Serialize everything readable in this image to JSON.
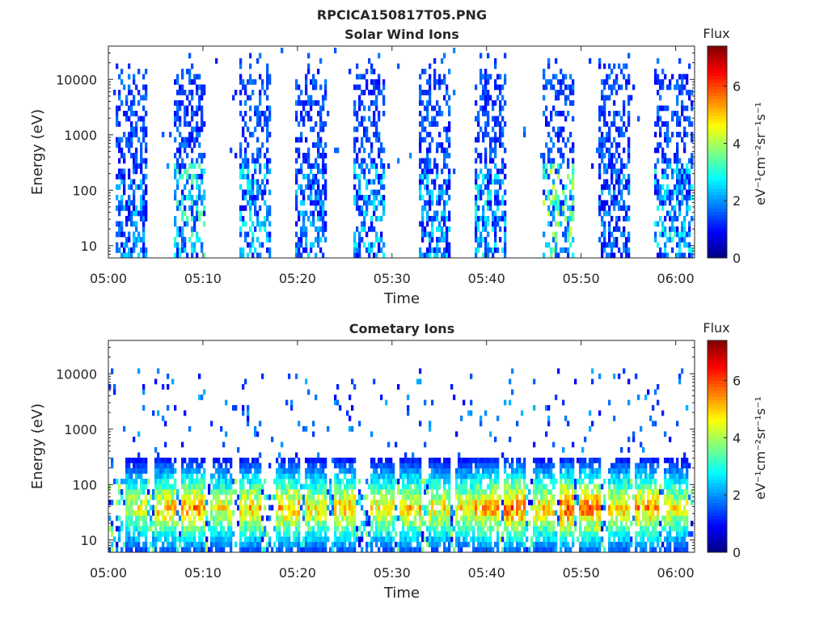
{
  "figure": {
    "title": "RPCICA150817T05.PNG"
  },
  "colors": {
    "axis": "#262626",
    "colormap": "jet",
    "background": "#ffffff"
  },
  "chart_data": [
    {
      "type": "heatmap",
      "title": "Solar Wind Ions",
      "xlabel": "Time",
      "ylabel": "Energy (eV)",
      "y_scale": "log",
      "ylim": [
        6,
        40000
      ],
      "xlim": [
        "05:00",
        "06:02"
      ],
      "x_ticks": [
        "05:00",
        "05:10",
        "05:20",
        "05:30",
        "05:40",
        "05:50",
        "06:00"
      ],
      "y_ticks": [
        "10",
        "100",
        "1000",
        "10000"
      ],
      "colorbar": {
        "title": "Flux",
        "label": "eV⁻¹cm⁻²sr⁻¹s⁻¹",
        "range": [
          0,
          7.4
        ],
        "ticks": [
          "0",
          "2",
          "4",
          "6"
        ]
      },
      "bursts": [
        {
          "start": "05:01",
          "end": "05:04",
          "peak": 2.6
        },
        {
          "start": "05:07",
          "end": "05:10",
          "peak": 3.6
        },
        {
          "start": "05:14",
          "end": "05:17",
          "peak": 3.0
        },
        {
          "start": "05:20",
          "end": "05:23",
          "peak": 2.6
        },
        {
          "start": "05:26",
          "end": "05:29",
          "peak": 3.0
        },
        {
          "start": "05:33",
          "end": "05:36",
          "peak": 2.8
        },
        {
          "start": "05:39",
          "end": "05:42",
          "peak": 3.2
        },
        {
          "start": "05:46",
          "end": "05:49",
          "peak": 4.4
        },
        {
          "start": "05:52",
          "end": "05:55",
          "peak": 2.4
        },
        {
          "start": "05:58",
          "end": "06:02",
          "peak": 3.2
        }
      ]
    },
    {
      "type": "heatmap",
      "title": "Cometary Ions",
      "xlabel": "Time",
      "ylabel": "Energy (eV)",
      "y_scale": "log",
      "ylim": [
        6,
        40000
      ],
      "xlim": [
        "05:00",
        "06:02"
      ],
      "x_ticks": [
        "05:00",
        "05:10",
        "05:20",
        "05:30",
        "05:40",
        "05:50",
        "06:00"
      ],
      "y_ticks": [
        "10",
        "100",
        "1000",
        "10000"
      ],
      "colorbar": {
        "title": "Flux",
        "label": "eV⁻¹cm⁻²sr⁻¹s⁻¹",
        "range": [
          0,
          7.4
        ],
        "ticks": [
          "0",
          "2",
          "4",
          "6"
        ]
      },
      "bursts": [
        {
          "start": "05:02",
          "end": "05:04",
          "peak": 5.2
        },
        {
          "start": "05:05",
          "end": "05:07",
          "peak": 6.0
        },
        {
          "start": "05:08",
          "end": "05:10",
          "peak": 6.2
        },
        {
          "start": "05:11",
          "end": "05:13",
          "peak": 5.4
        },
        {
          "start": "05:14",
          "end": "05:16",
          "peak": 5.8
        },
        {
          "start": "05:18",
          "end": "05:20",
          "peak": 6.0
        },
        {
          "start": "05:21",
          "end": "05:23",
          "peak": 5.6
        },
        {
          "start": "05:24",
          "end": "05:26",
          "peak": 6.0
        },
        {
          "start": "05:28",
          "end": "05:30",
          "peak": 5.6
        },
        {
          "start": "05:31",
          "end": "05:33",
          "peak": 5.8
        },
        {
          "start": "05:34",
          "end": "05:36",
          "peak": 5.6
        },
        {
          "start": "05:37",
          "end": "05:39",
          "peak": 5.6
        },
        {
          "start": "05:39",
          "end": "05:41",
          "peak": 6.2
        },
        {
          "start": "05:42",
          "end": "05:44",
          "peak": 6.6
        },
        {
          "start": "05:45",
          "end": "05:47",
          "peak": 5.8
        },
        {
          "start": "05:48",
          "end": "05:49",
          "peak": 6.8
        },
        {
          "start": "05:50",
          "end": "05:52",
          "peak": 6.6
        },
        {
          "start": "05:53",
          "end": "05:55",
          "peak": 5.8
        },
        {
          "start": "05:56",
          "end": "05:58",
          "peak": 6.2
        },
        {
          "start": "05:59",
          "end": "06:01",
          "peak": 5.4
        }
      ]
    }
  ]
}
